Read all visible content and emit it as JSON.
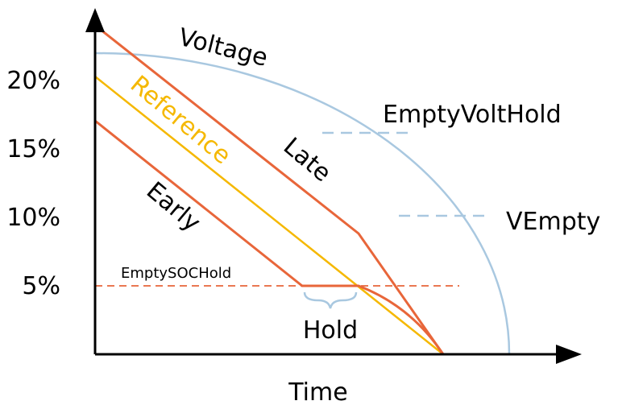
{
  "y_axis": {
    "labels": [
      "20%",
      "15%",
      "10%",
      "5%"
    ]
  },
  "x_axis": {
    "label": "Time"
  },
  "curves": {
    "voltage": "Voltage",
    "reference": "Reference",
    "late": "Late",
    "early": "Early"
  },
  "thresholds": {
    "soc_hold": "EmptySOCHold",
    "volt_hold": "EmptyVoltHold",
    "vempty": "VEmpty"
  },
  "hold": "Hold"
}
